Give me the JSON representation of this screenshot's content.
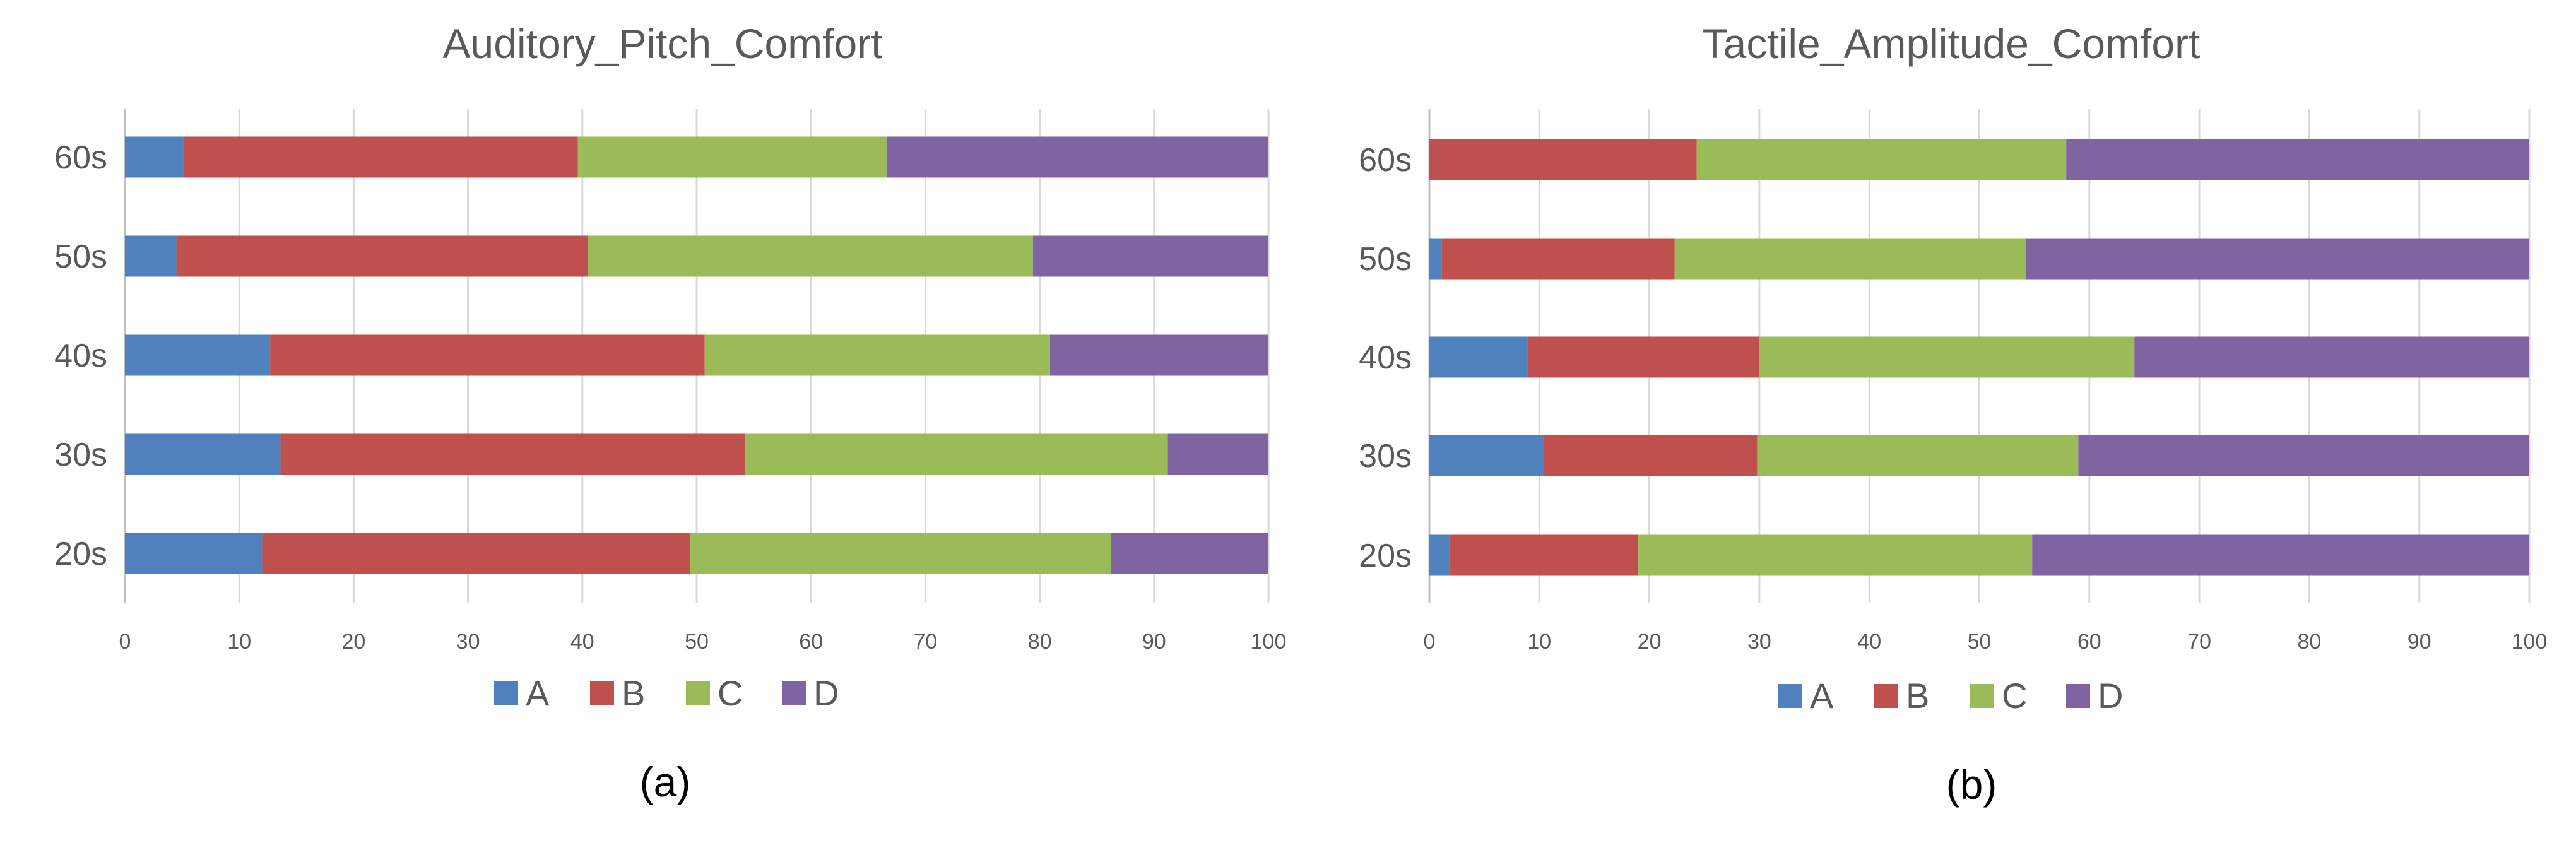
{
  "panel_labels": [
    "(a)",
    "(b)"
  ],
  "colors": {
    "A": "#4f81bd",
    "B": "#c0504d",
    "C": "#9bbb59",
    "D": "#8064a2"
  },
  "chart_data": [
    {
      "type": "bar",
      "orientation": "horizontal",
      "stacked": true,
      "title": "Auditory_Pitch_Comfort",
      "xlabel": "",
      "ylabel": "",
      "xlim": [
        0,
        100
      ],
      "x_ticks": [
        "0",
        "10",
        "20",
        "30",
        "40",
        "50",
        "60",
        "70",
        "80",
        "90",
        "100"
      ],
      "categories": [
        "20s",
        "30s",
        "40s",
        "50s",
        "60s"
      ],
      "legend": [
        "A",
        "B",
        "C",
        "D"
      ],
      "legend_position": "bottom",
      "grid": true,
      "series": [
        {
          "name": "A",
          "values": [
            12,
            13.6,
            12.7,
            4.5,
            5.1
          ]
        },
        {
          "name": "B",
          "values": [
            37.4,
            40.6,
            38,
            36,
            34.5
          ]
        },
        {
          "name": "C",
          "values": [
            36.8,
            37,
            30.2,
            38.9,
            27
          ]
        },
        {
          "name": "D",
          "values": [
            13.8,
            8.8,
            19.1,
            20.6,
            33.4
          ]
        }
      ]
    },
    {
      "type": "bar",
      "orientation": "horizontal",
      "stacked": true,
      "title": "Tactile_Amplitude_Comfort",
      "xlabel": "",
      "ylabel": "",
      "xlim": [
        0,
        100
      ],
      "x_ticks": [
        "0",
        "10",
        "20",
        "30",
        "40",
        "50",
        "60",
        "70",
        "80",
        "90",
        "100"
      ],
      "categories": [
        "20s",
        "30s",
        "40s",
        "50s",
        "60s"
      ],
      "legend": [
        "A",
        "B",
        "C",
        "D"
      ],
      "legend_position": "bottom",
      "grid": true,
      "series": [
        {
          "name": "A",
          "values": [
            1.8,
            10.4,
            8.9,
            1.1,
            0
          ]
        },
        {
          "name": "B",
          "values": [
            17.2,
            19.4,
            21.1,
            21.2,
            24.3
          ]
        },
        {
          "name": "C",
          "values": [
            35.8,
            29.2,
            34.1,
            31.9,
            33.6
          ]
        },
        {
          "name": "D",
          "values": [
            45.2,
            41,
            35.9,
            45.8,
            42.1
          ]
        }
      ]
    }
  ]
}
